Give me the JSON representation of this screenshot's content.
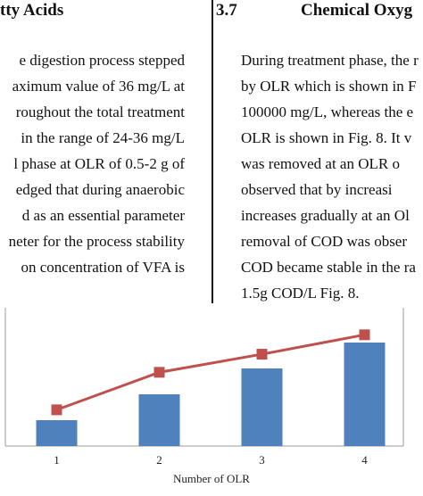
{
  "left_column": {
    "heading": "tty Acids",
    "lines": [
      "e digestion process stepped",
      "aximum value of 36 mg/L at",
      "roughout the total treatment",
      "in the range of 24-36 mg/L",
      "l phase at OLR of 0.5-2 g of",
      "edged that during anaerobic",
      "d as an essential parameter",
      "neter for the process stability",
      "on concentration of VFA is"
    ]
  },
  "right_column": {
    "heading_number": "3.7",
    "heading_title": "Chemical Oxyg",
    "lines": [
      "During treatment phase, the r",
      "by OLR which is shown in F",
      "100000 mg/L, whereas the e",
      "OLR is shown in Fig. 8. It v",
      "was removed at an OLR o",
      "observed that by increasi",
      "increases gradually at an Ol",
      "removal of COD was obser",
      "COD became stable in the ra",
      "1.5g COD/L Fig. 8."
    ]
  },
  "chart_data": {
    "type": "bar",
    "categories": [
      "1",
      "2",
      "3",
      "4"
    ],
    "x_label": "Number of OLR",
    "series": [
      {
        "type": "bar",
        "color": "#4f81bd",
        "values": [
          1,
          2,
          3,
          4
        ]
      },
      {
        "type": "line",
        "axis": "y2",
        "color": "#c0504d",
        "values": [
          1.4,
          2.85,
          3.55,
          4.3
        ]
      }
    ],
    "ylim": [
      0,
      5
    ],
    "y2lim": [
      0,
      5
    ]
  }
}
